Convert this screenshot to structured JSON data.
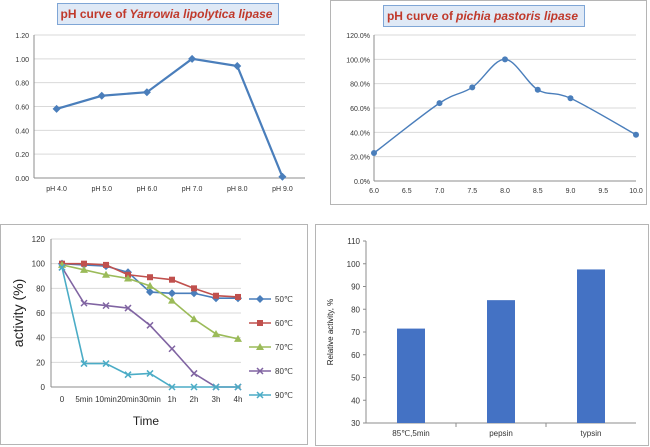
{
  "colors": {
    "line_blue": "#4a7ebb",
    "bar_blue": "#4472c4",
    "title_red": "#c0392b",
    "grid": "#d9d9d9",
    "axis": "#8c8c8c"
  },
  "chart_data": [
    {
      "id": "yarrowia",
      "type": "line",
      "title_prefix": "pH curve of",
      "title_species": "Yarrowia lipolytica lipase",
      "categories": [
        "pH 4.0",
        "pH 5.0",
        "pH 6.0",
        "pH 7.0",
        "pH 8.0",
        "pH 9.0"
      ],
      "values": [
        0.58,
        0.69,
        0.72,
        1.0,
        0.94,
        0.01
      ],
      "ylim": [
        0,
        1.2
      ],
      "yticks": [
        "0.00",
        "0.20",
        "0.40",
        "0.60",
        "0.80",
        "1.00",
        "1.20"
      ],
      "grid": true,
      "color": "#4a7ebb"
    },
    {
      "id": "pichia",
      "type": "line",
      "title_prefix": "pH curve of",
      "title_species": "pichia pastoris lipase",
      "x": [
        6.0,
        7.0,
        7.5,
        8.0,
        8.5,
        9.0,
        10.0
      ],
      "values": [
        0.23,
        0.64,
        0.77,
        1.0,
        0.75,
        0.68,
        0.38
      ],
      "xlim": [
        6.0,
        10.0
      ],
      "xticks": [
        "6.0",
        "6.5",
        "7.0",
        "7.5",
        "8.0",
        "8.5",
        "9.0",
        "9.5",
        "10.0"
      ],
      "ylim": [
        0,
        1.2
      ],
      "yticks": [
        "0.0%",
        "20.0%",
        "40.0%",
        "60.0%",
        "80.0%",
        "100.0%",
        "120.0%"
      ],
      "grid": true,
      "smooth": true,
      "color": "#4a7ebb"
    },
    {
      "id": "thermal",
      "type": "line",
      "categories": [
        "0",
        "5min",
        "10min",
        "20min",
        "30min",
        "1h",
        "2h",
        "3h",
        "4h"
      ],
      "ylabel": "activity (%)",
      "xlabel": "Time",
      "ylim": [
        0,
        120
      ],
      "yticks": [
        "0",
        "20",
        "40",
        "60",
        "80",
        "100",
        "120"
      ],
      "grid": true,
      "legend": "right",
      "series": [
        {
          "name": "50℃",
          "values": [
            100,
            99,
            98,
            93,
            77,
            76,
            76,
            72,
            72
          ],
          "color": "#4a7ebb",
          "marker": "diamond"
        },
        {
          "name": "60℃",
          "values": [
            100,
            100,
            99,
            91,
            89,
            87,
            80,
            74,
            73
          ],
          "color": "#c0504d",
          "marker": "square"
        },
        {
          "name": "70℃",
          "values": [
            99,
            95,
            91,
            88,
            82,
            70,
            55,
            43,
            39
          ],
          "color": "#9bbb59",
          "marker": "triangle"
        },
        {
          "name": "80℃",
          "values": [
            97,
            68,
            66,
            64,
            50,
            31,
            11,
            0,
            0
          ],
          "color": "#8064a2",
          "marker": "x"
        },
        {
          "name": "90℃",
          "values": [
            97,
            19,
            19,
            10,
            11,
            0,
            0,
            0,
            0
          ],
          "color": "#4bacc6",
          "marker": "x"
        }
      ]
    },
    {
      "id": "relative",
      "type": "bar",
      "categories": [
        "85℃,5min",
        "pepsin",
        "typsin"
      ],
      "values": [
        71.5,
        84,
        97.5
      ],
      "ylabel": "Relative activity, %",
      "ylim": [
        30,
        110
      ],
      "yticks": [
        "30",
        "40",
        "50",
        "60",
        "70",
        "80",
        "90",
        "100",
        "110"
      ],
      "grid": false,
      "color": "#4472c4"
    }
  ]
}
